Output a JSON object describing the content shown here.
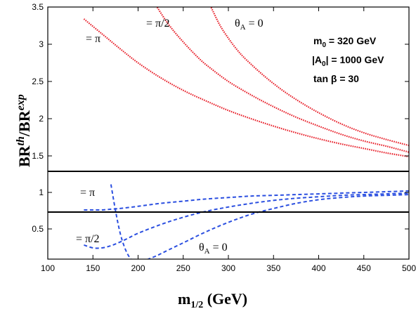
{
  "chart_data": {
    "type": "line",
    "title": "",
    "xlabel": "m",
    "xlabel_sub": "1/2",
    "xlabel_units": " (GeV)",
    "ylabel": "BR",
    "ylabel_sup1": "th",
    "ylabel_mid": "/BR",
    "ylabel_sup2": "exp",
    "xlim": [
      100,
      500
    ],
    "ylim": [
      0.1,
      3.5
    ],
    "y_break": 1.65,
    "xticks": [
      "100",
      "150",
      "200",
      "250",
      "300",
      "350",
      "400",
      "450",
      "500"
    ],
    "yticks_upper": [
      "1.5",
      "2",
      "2.5",
      "3",
      "3.5"
    ],
    "yticks_lower": [
      "0.5",
      "1"
    ],
    "hlines": [
      1.29,
      0.73
    ],
    "legend_text": {
      "line1_main": "m",
      "line1_sub": "0",
      "line1_rest": " = 320 GeV",
      "line2_main": "|A",
      "line2_sub": "0",
      "line2_rest": "| = 1000 GeV",
      "line3": "tan β = 30"
    },
    "curve_labels": {
      "red_pi": "= π",
      "red_pi2": "= π/2",
      "red_theta_main": "θ",
      "red_theta_sub": "A",
      "red_theta_rest": " = 0",
      "blue_pi": "= π",
      "blue_pi2": "= π/2",
      "blue_theta_main": "θ",
      "blue_theta_sub": "A",
      "blue_theta_rest": " = 0"
    },
    "series": [
      {
        "color": "#e8242e",
        "style": "dotted",
        "x": [
          140,
          160,
          180,
          200,
          225,
          250,
          275,
          300,
          325,
          350,
          375,
          400,
          425,
          450,
          475,
          500
        ],
        "y": [
          3.34,
          3.14,
          2.94,
          2.75,
          2.55,
          2.38,
          2.24,
          2.11,
          2.0,
          1.9,
          1.81,
          1.73,
          1.66,
          1.6,
          1.54,
          1.49
        ]
      },
      {
        "color": "#e8242e",
        "style": "dotted",
        "x": [
          220,
          230,
          240,
          250,
          260,
          270,
          280,
          300,
          325,
          350,
          375,
          400,
          425,
          450,
          475,
          500
        ],
        "y": [
          3.52,
          3.33,
          3.17,
          3.03,
          2.9,
          2.78,
          2.68,
          2.5,
          2.32,
          2.16,
          2.02,
          1.9,
          1.79,
          1.7,
          1.63,
          1.55
        ]
      },
      {
        "color": "#e8242e",
        "style": "dotted",
        "x": [
          280,
          290,
          300,
          310,
          320,
          340,
          360,
          380,
          400,
          425,
          450,
          475,
          500
        ],
        "y": [
          3.52,
          3.27,
          3.08,
          2.92,
          2.79,
          2.57,
          2.38,
          2.22,
          2.08,
          1.93,
          1.81,
          1.72,
          1.64
        ]
      },
      {
        "color": "#2b4fe0",
        "style": "dashed",
        "x": [
          140,
          150,
          160,
          170,
          180,
          200,
          225,
          250,
          275,
          300,
          325,
          350,
          375,
          400,
          425,
          450,
          475,
          500
        ],
        "y": [
          0.76,
          0.76,
          0.76,
          0.77,
          0.78,
          0.81,
          0.85,
          0.88,
          0.91,
          0.93,
          0.95,
          0.96,
          0.97,
          0.98,
          0.99,
          1.0,
          1.01,
          1.02
        ]
      },
      {
        "color": "#2b4fe0",
        "style": "dashed",
        "x": [
          140,
          150,
          160,
          170,
          180,
          190,
          200,
          225,
          250,
          275,
          300,
          325,
          350,
          375,
          400,
          425,
          450,
          475,
          500
        ],
        "y": [
          0.28,
          0.24,
          0.24,
          0.27,
          0.32,
          0.38,
          0.44,
          0.56,
          0.66,
          0.74,
          0.8,
          0.85,
          0.89,
          0.92,
          0.94,
          0.96,
          0.97,
          0.98,
          0.99
        ]
      },
      {
        "color": "#2b4fe0",
        "style": "dashed",
        "x": [
          170,
          175,
          180,
          185,
          190,
          195
        ],
        "y": [
          1.11,
          0.75,
          0.45,
          0.25,
          0.12,
          0.05
        ]
      },
      {
        "color": "#2b4fe0",
        "style": "dashed",
        "x": [
          210,
          220,
          230,
          250,
          275,
          300,
          325,
          350,
          375,
          400,
          425,
          450,
          475,
          500
        ],
        "y": [
          0.08,
          0.13,
          0.19,
          0.31,
          0.46,
          0.59,
          0.7,
          0.78,
          0.85,
          0.9,
          0.93,
          0.95,
          0.96,
          0.97
        ]
      }
    ]
  }
}
